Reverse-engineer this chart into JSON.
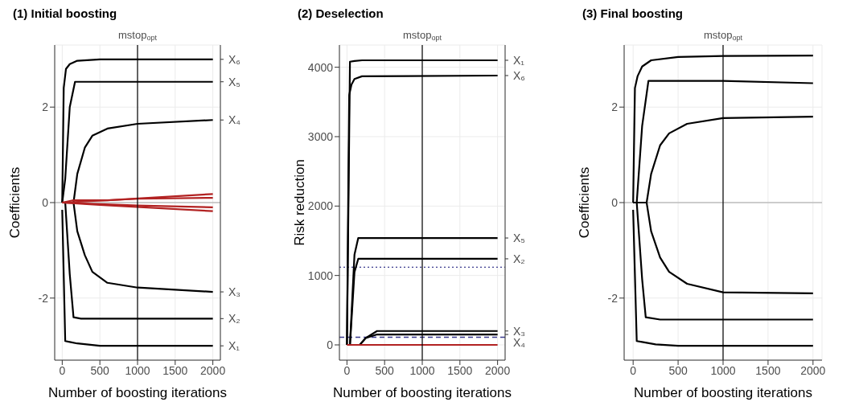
{
  "chart_data": [
    {
      "type": "line",
      "title": "(1) Initial boosting",
      "xlabel": "Number of boosting iterations",
      "ylabel": "Coefficients",
      "xlim": [
        -100,
        2100
      ],
      "xticks": [
        0,
        500,
        1000,
        1500,
        2000
      ],
      "ylim": [
        -3.3,
        3.3
      ],
      "yticks": [
        -2,
        0,
        2
      ],
      "grid": true,
      "marker": "none",
      "line_style": "solid",
      "ref_lines": [
        {
          "axis": "y",
          "value": 0,
          "color": "#bebebe",
          "line_style": "solid"
        },
        {
          "axis": "x",
          "value": 1000,
          "label": "mstop$_{opt}$",
          "color": "#000000",
          "line_style": "solid"
        }
      ],
      "series": [
        {
          "name": "X₆",
          "color": "#000000",
          "x": [
            0,
            20,
            50,
            100,
            200,
            500,
            2000
          ],
          "values": [
            0,
            2.4,
            2.8,
            2.9,
            2.97,
            3.0,
            3.0
          ]
        },
        {
          "name": "X₅",
          "color": "#000000",
          "x": [
            0,
            40,
            100,
            170,
            2000
          ],
          "values": [
            0,
            0.5,
            2.0,
            2.53,
            2.53
          ]
        },
        {
          "name": "X₄",
          "color": "#000000",
          "x": [
            0,
            150,
            200,
            300,
            400,
            600,
            1000,
            2000
          ],
          "values": [
            0,
            0,
            0.6,
            1.15,
            1.4,
            1.55,
            1.65,
            1.73
          ]
        },
        {
          "name": "X₃",
          "color": "#000000",
          "x": [
            0,
            150,
            200,
            300,
            400,
            600,
            1000,
            2000
          ],
          "values": [
            0,
            0,
            -0.6,
            -1.1,
            -1.45,
            -1.68,
            -1.78,
            -1.87
          ]
        },
        {
          "name": "X₂",
          "color": "#000000",
          "x": [
            0,
            40,
            100,
            150,
            250,
            2000
          ],
          "values": [
            0,
            0,
            -1.5,
            -2.4,
            -2.43,
            -2.43
          ]
        },
        {
          "name": "X₁",
          "color": "#000000",
          "x": [
            0,
            40,
            100,
            200,
            500,
            2000
          ],
          "values": [
            -0.15,
            -2.9,
            -2.92,
            -2.95,
            -3.0,
            -3.0
          ]
        },
        {
          "color": "#b22222",
          "x": [
            0,
            150,
            600,
            2000
          ],
          "values": [
            0,
            0.05,
            0.05,
            0.18
          ]
        },
        {
          "color": "#b22222",
          "x": [
            0,
            1000,
            2000
          ],
          "values": [
            0,
            0.08,
            0.1
          ]
        },
        {
          "color": "#b22222",
          "x": [
            0,
            500,
            2000
          ],
          "values": [
            0,
            -0.05,
            -0.18
          ]
        },
        {
          "color": "#b22222",
          "x": [
            0,
            1000,
            2000
          ],
          "values": [
            0,
            -0.06,
            -0.1
          ]
        }
      ]
    },
    {
      "type": "line",
      "title": "(2) Deselection",
      "xlabel": "Number of boosting iterations",
      "ylabel": "Risk reduction",
      "xlim": [
        -100,
        2100
      ],
      "xticks": [
        0,
        500,
        1000,
        1500,
        2000
      ],
      "ylim": [
        -220,
        4320
      ],
      "yticks": [
        0,
        1000,
        2000,
        3000,
        4000
      ],
      "grid": true,
      "marker": "none",
      "line_style": "solid",
      "ref_lines": [
        {
          "axis": "y",
          "value": 1120,
          "color": "#3b3b8f",
          "line_style": "dotted"
        },
        {
          "axis": "y",
          "value": 110,
          "color": "#3b3b8f",
          "line_style": "dashed"
        },
        {
          "axis": "x",
          "value": 1000,
          "label": "mstop$_{opt}$",
          "color": "#000000",
          "line_style": "solid"
        }
      ],
      "series": [
        {
          "name": "X₁",
          "color": "#000000",
          "x": [
            0,
            40,
            100,
            200,
            2000
          ],
          "values": [
            0,
            4080,
            4090,
            4100,
            4100
          ]
        },
        {
          "name": "X₆",
          "color": "#000000",
          "x": [
            0,
            30,
            60,
            100,
            200,
            2000
          ],
          "values": [
            0,
            3600,
            3750,
            3830,
            3870,
            3880
          ]
        },
        {
          "name": "X₅",
          "color": "#000000",
          "x": [
            40,
            100,
            150,
            2000
          ],
          "values": [
            0,
            1300,
            1540,
            1540
          ]
        },
        {
          "name": "X₂",
          "color": "#000000",
          "x": [
            40,
            100,
            150,
            2000
          ],
          "values": [
            0,
            1050,
            1240,
            1240
          ]
        },
        {
          "name": "X₃",
          "color": "#000000",
          "x": [
            170,
            250,
            400,
            2000
          ],
          "values": [
            0,
            100,
            200,
            200
          ]
        },
        {
          "name": "X₄",
          "color": "#000000",
          "x": [
            170,
            250,
            400,
            2000
          ],
          "values": [
            0,
            100,
            150,
            150
          ]
        },
        {
          "color": "#b22222",
          "x": [
            0,
            2000
          ],
          "values": [
            0,
            0
          ]
        }
      ]
    },
    {
      "type": "line",
      "title": "(3) Final boosting",
      "xlabel": "Number of boosting iterations",
      "ylabel": "Coefficients",
      "xlim": [
        -100,
        2100
      ],
      "xticks": [
        0,
        500,
        1000,
        1500,
        2000
      ],
      "ylim": [
        -3.3,
        3.3
      ],
      "yticks": [
        -2,
        0,
        2
      ],
      "grid": true,
      "marker": "none",
      "line_style": "solid",
      "ref_lines": [
        {
          "axis": "y",
          "value": 0,
          "color": "#bebebe",
          "line_style": "solid"
        },
        {
          "axis": "x",
          "value": 1000,
          "label": "mstop$_{opt}$",
          "color": "#000000",
          "line_style": "solid"
        }
      ],
      "series": [
        {
          "color": "#000000",
          "x": [
            0,
            20,
            50,
            100,
            200,
            500,
            1000,
            2000
          ],
          "values": [
            0,
            2.4,
            2.65,
            2.85,
            2.98,
            3.05,
            3.07,
            3.08
          ]
        },
        {
          "color": "#000000",
          "x": [
            0,
            40,
            100,
            170,
            1000,
            2000
          ],
          "values": [
            0,
            0,
            1.6,
            2.55,
            2.55,
            2.5
          ]
        },
        {
          "color": "#000000",
          "x": [
            0,
            150,
            200,
            300,
            400,
            600,
            1000,
            2000
          ],
          "values": [
            0,
            0,
            0.6,
            1.2,
            1.45,
            1.65,
            1.77,
            1.8
          ]
        },
        {
          "color": "#000000",
          "x": [
            0,
            150,
            200,
            300,
            400,
            600,
            1000,
            2000
          ],
          "values": [
            0,
            0,
            -0.6,
            -1.15,
            -1.45,
            -1.7,
            -1.88,
            -1.9
          ]
        },
        {
          "color": "#000000",
          "x": [
            0,
            40,
            100,
            140,
            300,
            2000
          ],
          "values": [
            0,
            0,
            -1.6,
            -2.4,
            -2.45,
            -2.45
          ]
        },
        {
          "color": "#000000",
          "x": [
            0,
            40,
            100,
            250,
            500,
            2000
          ],
          "values": [
            -0.15,
            -2.9,
            -2.92,
            -2.97,
            -3.0,
            -3.0
          ]
        }
      ]
    }
  ]
}
